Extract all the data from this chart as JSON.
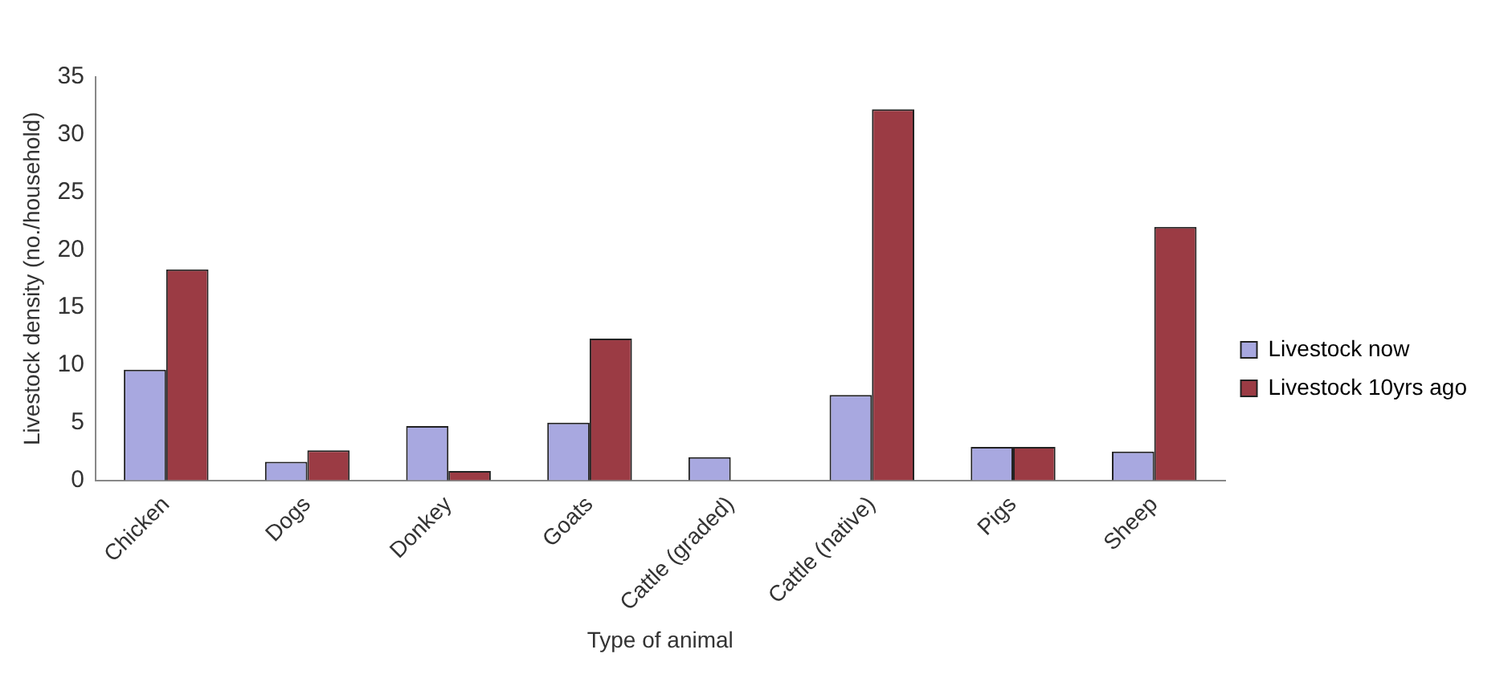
{
  "chart_data": {
    "type": "bar",
    "xlabel": "Type of animal",
    "ylabel": "Livestock density (no./household)",
    "categories": [
      "Chicken",
      "Dogs",
      "Donkey",
      "Goats",
      "Cattle (graded)",
      "Cattle (native)",
      "Pigs",
      "Sheep"
    ],
    "series": [
      {
        "name": "Livestock now",
        "color": "#a8a8e0",
        "values": [
          9.6,
          1.6,
          4.7,
          5.0,
          2.0,
          7.4,
          2.9,
          2.5
        ]
      },
      {
        "name": "Livestock 10yrs ago",
        "color": "#9b3b44",
        "values": [
          18.3,
          2.6,
          0.8,
          12.3,
          0,
          32.2,
          2.9,
          22.0
        ]
      }
    ],
    "ylim": [
      0,
      35
    ],
    "yticks": [
      0,
      5,
      10,
      15,
      20,
      25,
      30,
      35
    ],
    "grid": false,
    "legend": "right"
  }
}
